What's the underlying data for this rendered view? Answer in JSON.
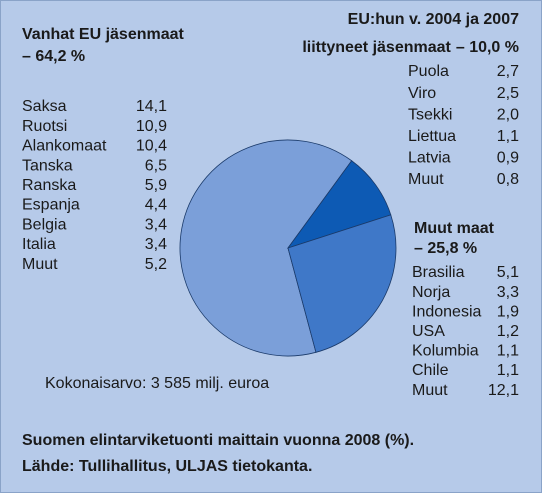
{
  "chart_data": {
    "type": "pie",
    "title": [
      "Suomen elintarviketuonti maittain vuonna 2008 (%).",
      "Lähde: Tullihallitus, ULJAS tietokanta."
    ],
    "note": "Kokonaisarvo: 3 585 milj. euroa",
    "series": [
      {
        "name": [
          "Vanhat EU jäsenmaat"
        ],
        "value": 64.2,
        "value_label": "– 64,2 %",
        "color": "#7b9fd9",
        "items": [
          [
            "Saksa",
            "14,1"
          ],
          [
            "Ruotsi",
            "10,9"
          ],
          [
            "Alankomaat",
            "10,4"
          ],
          [
            "Tanska",
            "6,5"
          ],
          [
            "Ranska",
            "5,9"
          ],
          [
            "Espanja",
            "4,4"
          ],
          [
            "Belgia",
            "3,4"
          ],
          [
            "Italia",
            "3,4"
          ],
          [
            "Muut",
            "5,2"
          ]
        ]
      },
      {
        "name": [
          "EU:hun v. 2004 ja 2007",
          "liittyneet jäsenmaat"
        ],
        "value": 10.0,
        "value_label": "– 10,0 %",
        "color": "#0d5ab4",
        "items": [
          [
            "Puola",
            "2,7"
          ],
          [
            "Viro",
            "2,5"
          ],
          [
            "Tsekki",
            "2,0"
          ],
          [
            "Liettua",
            "1,1"
          ],
          [
            "Latvia",
            "0,9"
          ],
          [
            "Muut",
            "0,8"
          ]
        ]
      },
      {
        "name": [
          "Muut maat"
        ],
        "value": 25.8,
        "value_label": "– 25,8 %",
        "color": "#3f78c8",
        "items": [
          [
            "Brasilia",
            "5,1"
          ],
          [
            "Norja",
            "3,3"
          ],
          [
            "Indonesia",
            "1,9"
          ],
          [
            "USA",
            "1,2"
          ],
          [
            "Kolumbia",
            "1,1"
          ],
          [
            "Chile",
            "1,1"
          ],
          [
            "Muut",
            "12,1"
          ]
        ]
      }
    ]
  }
}
